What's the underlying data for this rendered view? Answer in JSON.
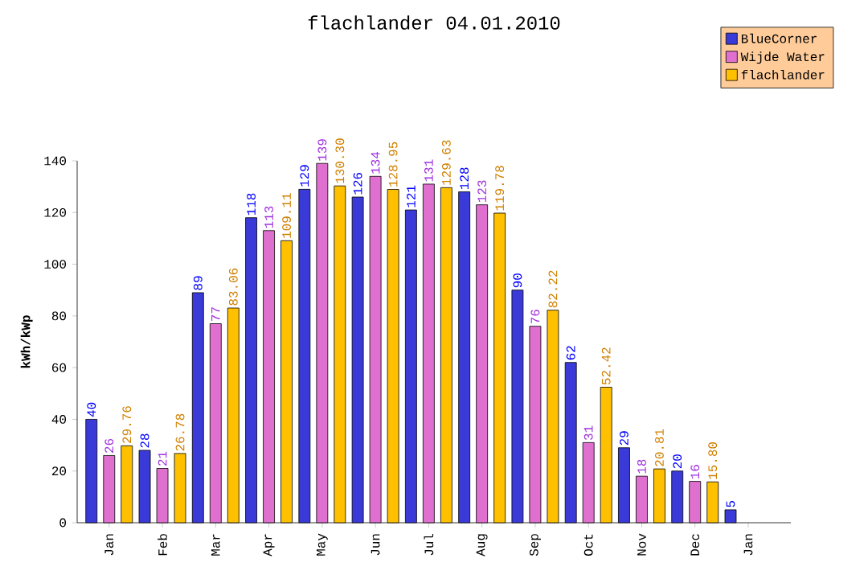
{
  "chart_data": {
    "type": "bar",
    "title": "flachlander 04.01.2010",
    "ylabel": "kWh/kWp",
    "categories": [
      "Jan",
      "Feb",
      "Mar",
      "Apr",
      "May",
      "Jun",
      "Jul",
      "Aug",
      "Sep",
      "Oct",
      "Nov",
      "Dec",
      "Jan"
    ],
    "series": [
      {
        "name": "BlueCorner",
        "color": "#3a3ad8",
        "values": [
          40,
          28,
          89,
          118,
          129,
          126,
          121,
          128,
          90,
          62,
          29,
          20,
          5
        ],
        "value_labels": [
          "40",
          "28",
          "89",
          "118",
          "129",
          "126",
          "121",
          "128",
          "90",
          "62",
          "29",
          "20",
          "5"
        ]
      },
      {
        "name": "Wijde Water",
        "color": "#e070d0",
        "values": [
          26,
          21,
          77,
          113,
          139,
          134,
          131,
          123,
          76,
          31,
          18,
          16,
          null
        ],
        "value_labels": [
          "26",
          "21",
          "77",
          "113",
          "139",
          "134",
          "131",
          "123",
          "76",
          "31",
          "18",
          "16",
          null
        ]
      },
      {
        "name": "flachlander",
        "color": "#ffc000",
        "values": [
          29.76,
          26.78,
          83.06,
          109.11,
          130.3,
          128.95,
          129.63,
          119.78,
          82.22,
          52.42,
          20.81,
          15.8,
          null
        ],
        "value_labels": [
          "29.76",
          "26.78",
          "83.06",
          "109.11",
          "130.30",
          "128.95",
          "129.63",
          "119.78",
          "82.22",
          "52.42",
          "20.81",
          "15.80",
          null
        ]
      }
    ],
    "ylim": [
      0,
      140
    ],
    "yticks": [
      0,
      20,
      40,
      60,
      80,
      100,
      120,
      140
    ],
    "legend": "top right",
    "grid": false
  }
}
